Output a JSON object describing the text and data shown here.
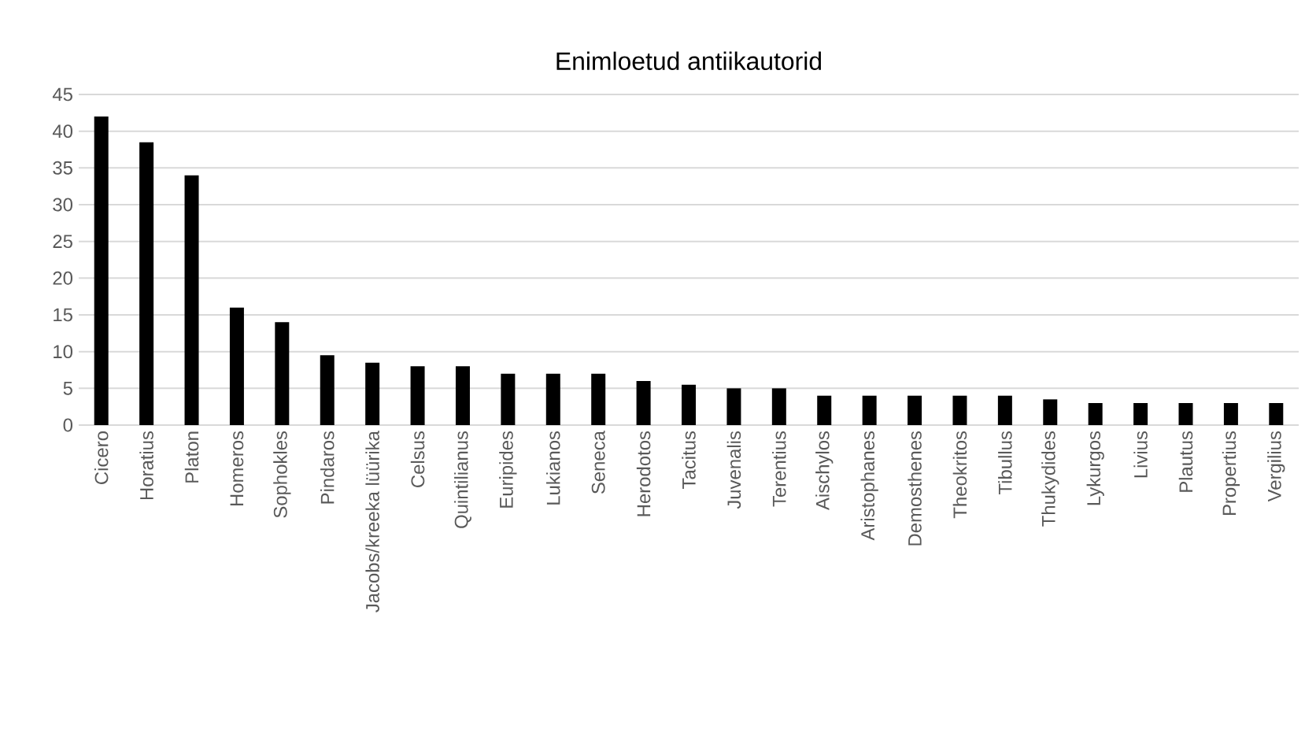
{
  "chart_data": {
    "type": "bar",
    "title": "Enimloetud antiikautorid",
    "categories": [
      "Cicero",
      "Horatius",
      "Platon",
      "Homeros",
      "Sophokles",
      "Pindaros",
      "Jacobs/kreeka lüürika",
      "Celsus",
      "Quintilianus",
      "Euripides",
      "Lukianos",
      "Seneca",
      "Herodotos",
      "Tacitus",
      "Juvenalis",
      "Terentius",
      "Aischylos",
      "Aristophanes",
      "Demosthenes",
      "Theokritos",
      "Tibullus",
      "Thukydides",
      "Lykurgos",
      "Livius",
      "Plautus",
      "Propertius",
      "Vergilius"
    ],
    "values": [
      42,
      38.5,
      34,
      16,
      14,
      9.5,
      8.5,
      8,
      8,
      7,
      7,
      7,
      6,
      5.5,
      5,
      5,
      4,
      4,
      4,
      4,
      4,
      3.5,
      3,
      3,
      3,
      3,
      3
    ],
    "color": "#000000",
    "ylim": [
      0,
      45
    ],
    "yticks": [
      0,
      5,
      10,
      15,
      20,
      25,
      30,
      35,
      40,
      45
    ],
    "grid": "y"
  }
}
